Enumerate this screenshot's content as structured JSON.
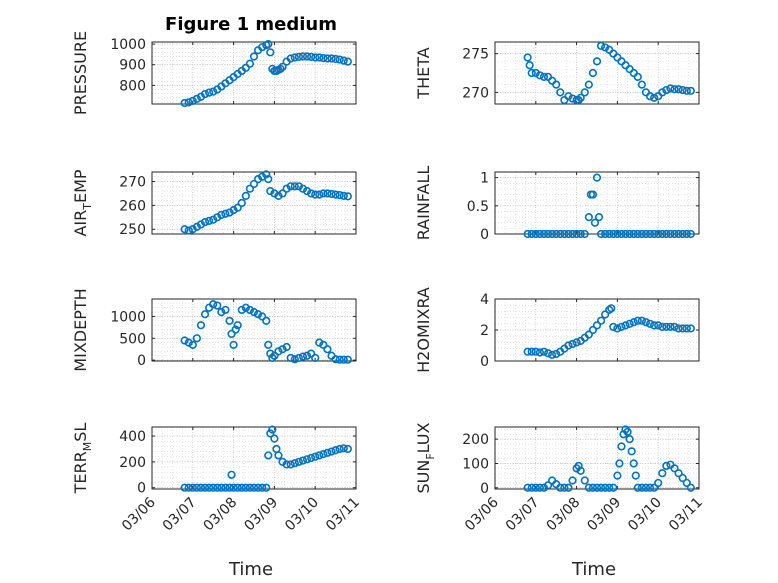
{
  "title": "Figure 1 medium",
  "xlabel": "Time",
  "marker_color": "#0072BD",
  "x_tick_labels": [
    "03/06",
    "03/07",
    "03/08",
    "03/09",
    "03/10",
    "03/11"
  ],
  "chart_data": [
    {
      "type": "scatter",
      "ylabel": "PRESSURE",
      "ylim": [
        710,
        1010
      ],
      "yticks": [
        800,
        900,
        1000
      ],
      "ytick_labels": [
        "800",
        "900",
        "1000"
      ],
      "grid": true,
      "x": [
        0.8,
        0.9,
        1.0,
        1.1,
        1.2,
        1.3,
        1.4,
        1.5,
        1.6,
        1.7,
        1.8,
        1.9,
        2.0,
        2.1,
        2.2,
        2.3,
        2.4,
        2.5,
        2.6,
        2.7,
        2.8,
        2.85,
        2.9,
        2.95,
        3.0,
        3.05,
        3.1,
        3.15,
        3.2,
        3.3,
        3.4,
        3.5,
        3.6,
        3.7,
        3.8,
        3.9,
        4.0,
        4.1,
        4.2,
        4.3,
        4.4,
        4.5,
        4.6,
        4.7,
        4.8
      ],
      "y": [
        715,
        718,
        725,
        735,
        745,
        758,
        765,
        770,
        780,
        795,
        810,
        825,
        840,
        855,
        870,
        885,
        905,
        940,
        970,
        985,
        995,
        1000,
        960,
        880,
        870,
        870,
        875,
        880,
        890,
        915,
        930,
        935,
        938,
        940,
        940,
        938,
        935,
        935,
        932,
        930,
        930,
        928,
        925,
        920,
        915
      ]
    },
    {
      "type": "scatter",
      "ylabel": "THETA",
      "ylim": [
        268.5,
        276.5
      ],
      "yticks": [
        270,
        275
      ],
      "ytick_labels": [
        "270",
        "275"
      ],
      "grid": true,
      "x": [
        0.8,
        0.85,
        0.9,
        1.0,
        1.1,
        1.2,
        1.3,
        1.4,
        1.5,
        1.6,
        1.7,
        1.8,
        1.9,
        2.0,
        2.05,
        2.1,
        2.2,
        2.3,
        2.4,
        2.5,
        2.6,
        2.7,
        2.8,
        2.9,
        3.0,
        3.1,
        3.2,
        3.3,
        3.4,
        3.5,
        3.6,
        3.7,
        3.8,
        3.9,
        4.0,
        4.1,
        4.2,
        4.3,
        4.4,
        4.5,
        4.6,
        4.7,
        4.8
      ],
      "y": [
        274.5,
        273.5,
        272.5,
        272.5,
        272.2,
        272,
        272,
        271.5,
        271,
        270,
        269,
        269.5,
        269.2,
        269,
        269,
        269.3,
        270,
        271,
        272.5,
        274,
        276,
        275.8,
        275.5,
        275,
        274.5,
        274,
        273.5,
        273,
        272.5,
        272,
        271,
        270,
        269.5,
        269.3,
        269.5,
        270,
        270.3,
        270.5,
        270.4,
        270.4,
        270.3,
        270.2,
        270.2
      ]
    },
    {
      "type": "scatter",
      "ylabel": "AIR_TEMP",
      "ylim": [
        248,
        274
      ],
      "yticks": [
        250,
        260,
        270
      ],
      "ytick_labels": [
        "250",
        "260",
        "270"
      ],
      "grid": true,
      "x": [
        0.8,
        0.9,
        1.0,
        1.1,
        1.2,
        1.3,
        1.4,
        1.5,
        1.6,
        1.7,
        1.8,
        1.9,
        2.0,
        2.1,
        2.2,
        2.3,
        2.4,
        2.5,
        2.6,
        2.7,
        2.8,
        2.85,
        2.9,
        3.0,
        3.1,
        3.2,
        3.3,
        3.4,
        3.5,
        3.6,
        3.7,
        3.8,
        3.9,
        4.0,
        4.1,
        4.2,
        4.3,
        4.4,
        4.5,
        4.6,
        4.7,
        4.8
      ],
      "y": [
        250,
        249.5,
        250,
        251,
        252,
        253,
        253.5,
        254,
        255,
        256,
        256.5,
        257,
        258,
        259,
        261,
        264,
        267,
        269,
        271,
        272,
        273,
        271,
        266,
        265,
        264,
        265,
        267,
        268,
        268,
        268,
        267,
        266,
        265,
        264.5,
        264.5,
        265,
        265,
        264.8,
        264.5,
        264.3,
        264,
        263.8
      ]
    },
    {
      "type": "scatter",
      "ylabel": "RAINFALL",
      "ylim": [
        0,
        1.1
      ],
      "yticks": [
        0,
        0.5,
        1
      ],
      "ytick_labels": [
        "0",
        "0.5",
        "1"
      ],
      "grid": true,
      "x": [
        0.8,
        0.9,
        1.0,
        1.1,
        1.2,
        1.3,
        1.4,
        1.5,
        1.6,
        1.7,
        1.8,
        1.9,
        2.0,
        2.1,
        2.2,
        2.3,
        2.35,
        2.4,
        2.45,
        2.5,
        2.55,
        2.6,
        2.7,
        2.8,
        2.9,
        3.0,
        3.1,
        3.2,
        3.3,
        3.4,
        3.5,
        3.6,
        3.7,
        3.8,
        3.9,
        4.0,
        4.1,
        4.2,
        4.3,
        4.4,
        4.5,
        4.6,
        4.7,
        4.8
      ],
      "y": [
        0,
        0,
        0,
        0,
        0,
        0,
        0,
        0,
        0,
        0,
        0,
        0,
        0,
        0,
        0,
        0.3,
        0.7,
        0.7,
        0.2,
        1.0,
        0.3,
        0,
        0,
        0,
        0,
        0,
        0,
        0,
        0,
        0,
        0,
        0,
        0,
        0,
        0,
        0,
        0,
        0,
        0,
        0,
        0,
        0,
        0,
        0
      ]
    },
    {
      "type": "scatter",
      "ylabel": "MIXDEPTH",
      "ylim": [
        -20,
        1400
      ],
      "yticks": [
        0,
        500,
        1000
      ],
      "ytick_labels": [
        "0",
        "500",
        "1000"
      ],
      "grid": true,
      "x": [
        0.8,
        0.9,
        1.0,
        1.1,
        1.2,
        1.3,
        1.4,
        1.5,
        1.6,
        1.7,
        1.8,
        1.9,
        1.95,
        2.0,
        2.05,
        2.1,
        2.2,
        2.3,
        2.4,
        2.5,
        2.6,
        2.7,
        2.8,
        2.85,
        2.9,
        2.95,
        3.0,
        3.1,
        3.2,
        3.3,
        3.4,
        3.5,
        3.6,
        3.7,
        3.8,
        3.9,
        4.0,
        4.1,
        4.2,
        4.3,
        4.4,
        4.5,
        4.6,
        4.7,
        4.8
      ],
      "y": [
        450,
        400,
        350,
        500,
        800,
        1050,
        1200,
        1280,
        1250,
        1100,
        1150,
        900,
        600,
        350,
        700,
        800,
        1150,
        1200,
        1150,
        1100,
        1050,
        1000,
        900,
        350,
        150,
        50,
        100,
        200,
        250,
        300,
        50,
        20,
        50,
        80,
        100,
        150,
        50,
        400,
        350,
        250,
        100,
        20,
        10,
        10,
        10
      ]
    },
    {
      "type": "scatter",
      "ylabel": "H2OMIXRA",
      "ylim": [
        0,
        4
      ],
      "yticks": [
        0,
        2,
        4
      ],
      "ytick_labels": [
        "0",
        "2",
        "4"
      ],
      "grid": true,
      "x": [
        0.8,
        0.9,
        1.0,
        1.1,
        1.2,
        1.3,
        1.4,
        1.5,
        1.6,
        1.7,
        1.8,
        1.9,
        2.0,
        2.1,
        2.2,
        2.3,
        2.4,
        2.5,
        2.6,
        2.7,
        2.8,
        2.85,
        2.9,
        3.0,
        3.1,
        3.2,
        3.3,
        3.4,
        3.5,
        3.6,
        3.7,
        3.8,
        3.9,
        4.0,
        4.1,
        4.2,
        4.3,
        4.4,
        4.5,
        4.6,
        4.7,
        4.8
      ],
      "y": [
        0.6,
        0.6,
        0.6,
        0.55,
        0.6,
        0.5,
        0.4,
        0.45,
        0.6,
        0.8,
        1.0,
        1.1,
        1.2,
        1.3,
        1.5,
        1.7,
        2.0,
        2.3,
        2.6,
        3.0,
        3.3,
        3.4,
        2.2,
        2.1,
        2.2,
        2.3,
        2.4,
        2.5,
        2.6,
        2.6,
        2.5,
        2.4,
        2.3,
        2.3,
        2.2,
        2.2,
        2.2,
        2.2,
        2.1,
        2.1,
        2.1,
        2.1
      ]
    },
    {
      "type": "scatter",
      "ylabel": "TERR_MSL",
      "ylim": [
        -10,
        470
      ],
      "yticks": [
        0,
        200,
        400
      ],
      "ytick_labels": [
        "0",
        "200",
        "400"
      ],
      "grid": true,
      "x": [
        0.8,
        0.9,
        1.0,
        1.1,
        1.2,
        1.3,
        1.4,
        1.5,
        1.6,
        1.7,
        1.8,
        1.9,
        1.95,
        2.0,
        2.1,
        2.2,
        2.3,
        2.4,
        2.5,
        2.6,
        2.7,
        2.8,
        2.85,
        2.9,
        2.95,
        3.0,
        3.05,
        3.1,
        3.2,
        3.3,
        3.4,
        3.5,
        3.6,
        3.7,
        3.8,
        3.9,
        4.0,
        4.1,
        4.2,
        4.3,
        4.4,
        4.5,
        4.6,
        4.7,
        4.8
      ],
      "y": [
        0,
        0,
        0,
        0,
        0,
        0,
        0,
        0,
        0,
        0,
        0,
        0,
        100,
        0,
        0,
        0,
        0,
        0,
        0,
        0,
        0,
        0,
        250,
        420,
        450,
        380,
        300,
        250,
        200,
        180,
        180,
        190,
        200,
        210,
        220,
        230,
        240,
        250,
        260,
        270,
        280,
        290,
        300,
        305,
        300
      ]
    },
    {
      "type": "scatter",
      "ylabel": "SUN_FLUX",
      "ylim": [
        -5,
        250
      ],
      "yticks": [
        0,
        100,
        200
      ],
      "ytick_labels": [
        "0",
        "100",
        "200"
      ],
      "grid": true,
      "x": [
        0.8,
        0.9,
        1.0,
        1.1,
        1.2,
        1.3,
        1.4,
        1.5,
        1.6,
        1.7,
        1.8,
        1.9,
        2.0,
        2.05,
        2.1,
        2.2,
        2.3,
        2.4,
        2.5,
        2.6,
        2.7,
        2.8,
        2.9,
        3.0,
        3.05,
        3.1,
        3.15,
        3.2,
        3.25,
        3.3,
        3.35,
        3.4,
        3.45,
        3.5,
        3.6,
        3.7,
        3.8,
        3.9,
        4.0,
        4.1,
        4.2,
        4.3,
        4.4,
        4.5,
        4.6,
        4.7,
        4.8
      ],
      "y": [
        0,
        0,
        0,
        0,
        0,
        10,
        30,
        15,
        0,
        0,
        0,
        30,
        80,
        90,
        70,
        30,
        0,
        0,
        0,
        0,
        0,
        0,
        0,
        50,
        100,
        170,
        220,
        240,
        230,
        200,
        150,
        100,
        50,
        0,
        0,
        0,
        0,
        0,
        20,
        60,
        90,
        95,
        80,
        60,
        40,
        20,
        0
      ]
    }
  ]
}
